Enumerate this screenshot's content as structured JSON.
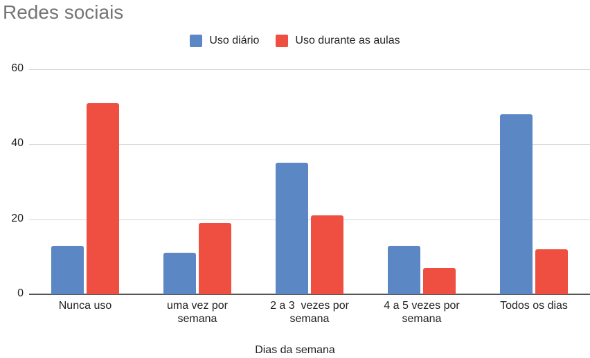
{
  "chart_data": {
    "type": "bar",
    "title": "Redes sociais",
    "xlabel": "Dias da semana",
    "ylabel": "",
    "categories": [
      "Nunca uso",
      "uma vez por semana",
      "2 a 3  vezes por semana",
      "4 a 5 vezes por semana",
      "Todos os dias"
    ],
    "category_lines": [
      [
        "Nunca uso"
      ],
      [
        "uma vez por",
        "semana"
      ],
      [
        "2 a 3  vezes por",
        "semana"
      ],
      [
        "4 a 5 vezes por",
        "semana"
      ],
      [
        "Todos os dias"
      ]
    ],
    "series": [
      {
        "name": "Uso diário",
        "color": "#5b87c5",
        "values": [
          13,
          11,
          35,
          13,
          48
        ]
      },
      {
        "name": "Uso durante as aulas",
        "color": "#ee4f40",
        "values": [
          51,
          19,
          21,
          7,
          12
        ]
      }
    ],
    "ylim": [
      0,
      60
    ],
    "yticks": [
      0,
      20,
      40,
      60
    ],
    "grid": true,
    "legend_position": "top"
  }
}
